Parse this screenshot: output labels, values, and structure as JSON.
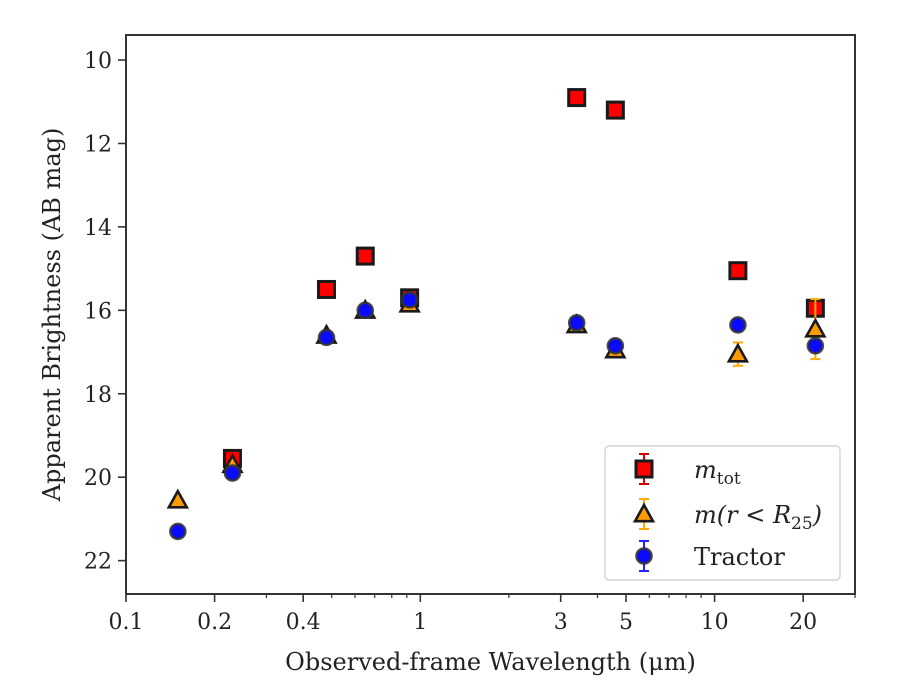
{
  "chart_data": {
    "type": "scatter",
    "xlabel": "Observed-frame Wavelength (μm)",
    "ylabel": "Apparent Brightness (AB mag)",
    "xscale": "log",
    "xlim": [
      0.1,
      30
    ],
    "ylim": [
      22.8,
      9.4
    ],
    "y_inverted": true,
    "grid": false,
    "legend_position": "lower-right",
    "x_ticks": [
      {
        "value": 0.1,
        "label": "0.1"
      },
      {
        "value": 0.2,
        "label": "0.2"
      },
      {
        "value": 0.4,
        "label": "0.4"
      },
      {
        "value": 1,
        "label": "1"
      },
      {
        "value": 3,
        "label": "3"
      },
      {
        "value": 5,
        "label": "5"
      },
      {
        "value": 10,
        "label": "10"
      },
      {
        "value": 20,
        "label": "20"
      }
    ],
    "y_ticks": [
      10,
      12,
      14,
      16,
      18,
      20,
      22
    ],
    "series": [
      {
        "name": "m_tot",
        "legend_main": "m",
        "legend_sub": "tot",
        "marker": "square",
        "color": "#ff0000",
        "edge": "#1a1a1a",
        "errbar_color": "#d00000",
        "points": [
          {
            "x": 0.23,
            "y": 19.55
          },
          {
            "x": 0.48,
            "y": 15.5
          },
          {
            "x": 0.65,
            "y": 14.7
          },
          {
            "x": 0.92,
            "y": 15.7
          },
          {
            "x": 3.4,
            "y": 10.9
          },
          {
            "x": 4.6,
            "y": 11.2
          },
          {
            "x": 12,
            "y": 15.05
          },
          {
            "x": 22,
            "y": 15.95
          }
        ]
      },
      {
        "name": "m(r < R_25)",
        "legend_main": "m(r < R",
        "legend_sub": "25",
        "legend_tail": ")",
        "marker": "triangle",
        "color": "#ff9a00",
        "edge": "#1a1a1a",
        "errbar_color": "#ffaa00",
        "points": [
          {
            "x": 0.15,
            "y": 20.55,
            "err": 0.1
          },
          {
            "x": 0.23,
            "y": 19.7,
            "err": 0.08
          },
          {
            "x": 0.48,
            "y": 16.6,
            "err": 0.06
          },
          {
            "x": 0.65,
            "y": 16.0,
            "err": 0.05
          },
          {
            "x": 0.92,
            "y": 15.85,
            "err": 0.06
          },
          {
            "x": 3.4,
            "y": 16.35,
            "err": 0.05
          },
          {
            "x": 4.6,
            "y": 16.95,
            "err": 0.07
          },
          {
            "x": 12,
            "y": 17.05,
            "err": 0.28
          },
          {
            "x": 22,
            "y": 16.45,
            "err": 0.72
          }
        ]
      },
      {
        "name": "Tractor",
        "legend_main": "Tractor",
        "marker": "circle",
        "color": "#0a0aff",
        "edge": "#333333",
        "errbar_color": "#2222ff",
        "points": [
          {
            "x": 0.15,
            "y": 21.3
          },
          {
            "x": 0.23,
            "y": 19.9
          },
          {
            "x": 0.48,
            "y": 16.65
          },
          {
            "x": 0.65,
            "y": 16.0
          },
          {
            "x": 0.92,
            "y": 15.75
          },
          {
            "x": 3.4,
            "y": 16.3
          },
          {
            "x": 4.6,
            "y": 16.85
          },
          {
            "x": 12,
            "y": 16.35
          },
          {
            "x": 22,
            "y": 16.85
          }
        ]
      }
    ]
  }
}
